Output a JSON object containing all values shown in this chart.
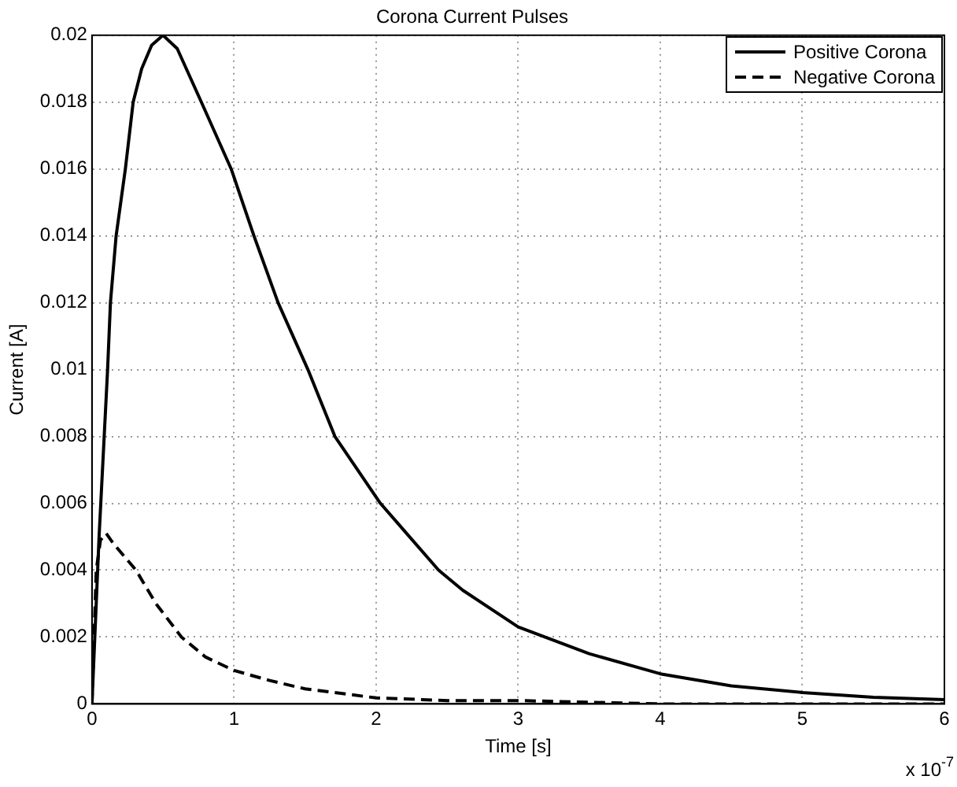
{
  "chart_data": {
    "type": "line",
    "title": "Corona Current Pulses",
    "xlabel": "Time [s]",
    "ylabel": "Current [A]",
    "annotations": [
      "x 10$^{-7}$"
    ],
    "xlim": [
      0,
      6
    ],
    "xticks": [
      0,
      1,
      2,
      3,
      4,
      5,
      6
    ],
    "ylim": [
      0,
      0.02
    ],
    "yticks": [
      0,
      0.002,
      0.004,
      0.006,
      0.008,
      0.01,
      0.012,
      0.014,
      0.016,
      0.018,
      0.02
    ],
    "grid": true,
    "legend": "top right",
    "marker": "none",
    "series": [
      {
        "name": "Positive Corona",
        "color": "#000000",
        "line_style": "solid",
        "x": [
          0,
          0.05,
          0.11,
          0.13,
          0.17,
          0.235,
          0.29,
          0.35,
          0.42,
          0.5,
          0.6,
          0.77,
          0.98,
          1.14,
          1.31,
          1.52,
          1.71,
          2.03,
          2.44,
          2.61,
          3,
          3.5,
          4,
          4.5,
          5,
          5.5,
          6
        ],
        "values": [
          0,
          0.005,
          0.01,
          0.012,
          0.014,
          0.016,
          0.018,
          0.019,
          0.0197,
          0.02,
          0.0196,
          0.018,
          0.016,
          0.014,
          0.012,
          0.01,
          0.008,
          0.006,
          0.004,
          0.0034,
          0.0023,
          0.0015,
          0.0009,
          0.00054,
          0.00034,
          0.0002,
          0.00013
        ]
      },
      {
        "name": "Negative Corona",
        "color": "#000000",
        "line_style": "dashed",
        "x": [
          0,
          0.03,
          0.06,
          0.1,
          0.15,
          0.31,
          0.45,
          0.63,
          0.8,
          1,
          1.25,
          1.5,
          2,
          2.5,
          3,
          4,
          5,
          6
        ],
        "values": [
          0,
          0.004,
          0.0049,
          0.0051,
          0.0048,
          0.004,
          0.003,
          0.002,
          0.0014,
          0.001,
          0.0007,
          0.00045,
          0.00018,
          0.0001,
          0.0001,
          0,
          0,
          0
        ]
      }
    ]
  }
}
